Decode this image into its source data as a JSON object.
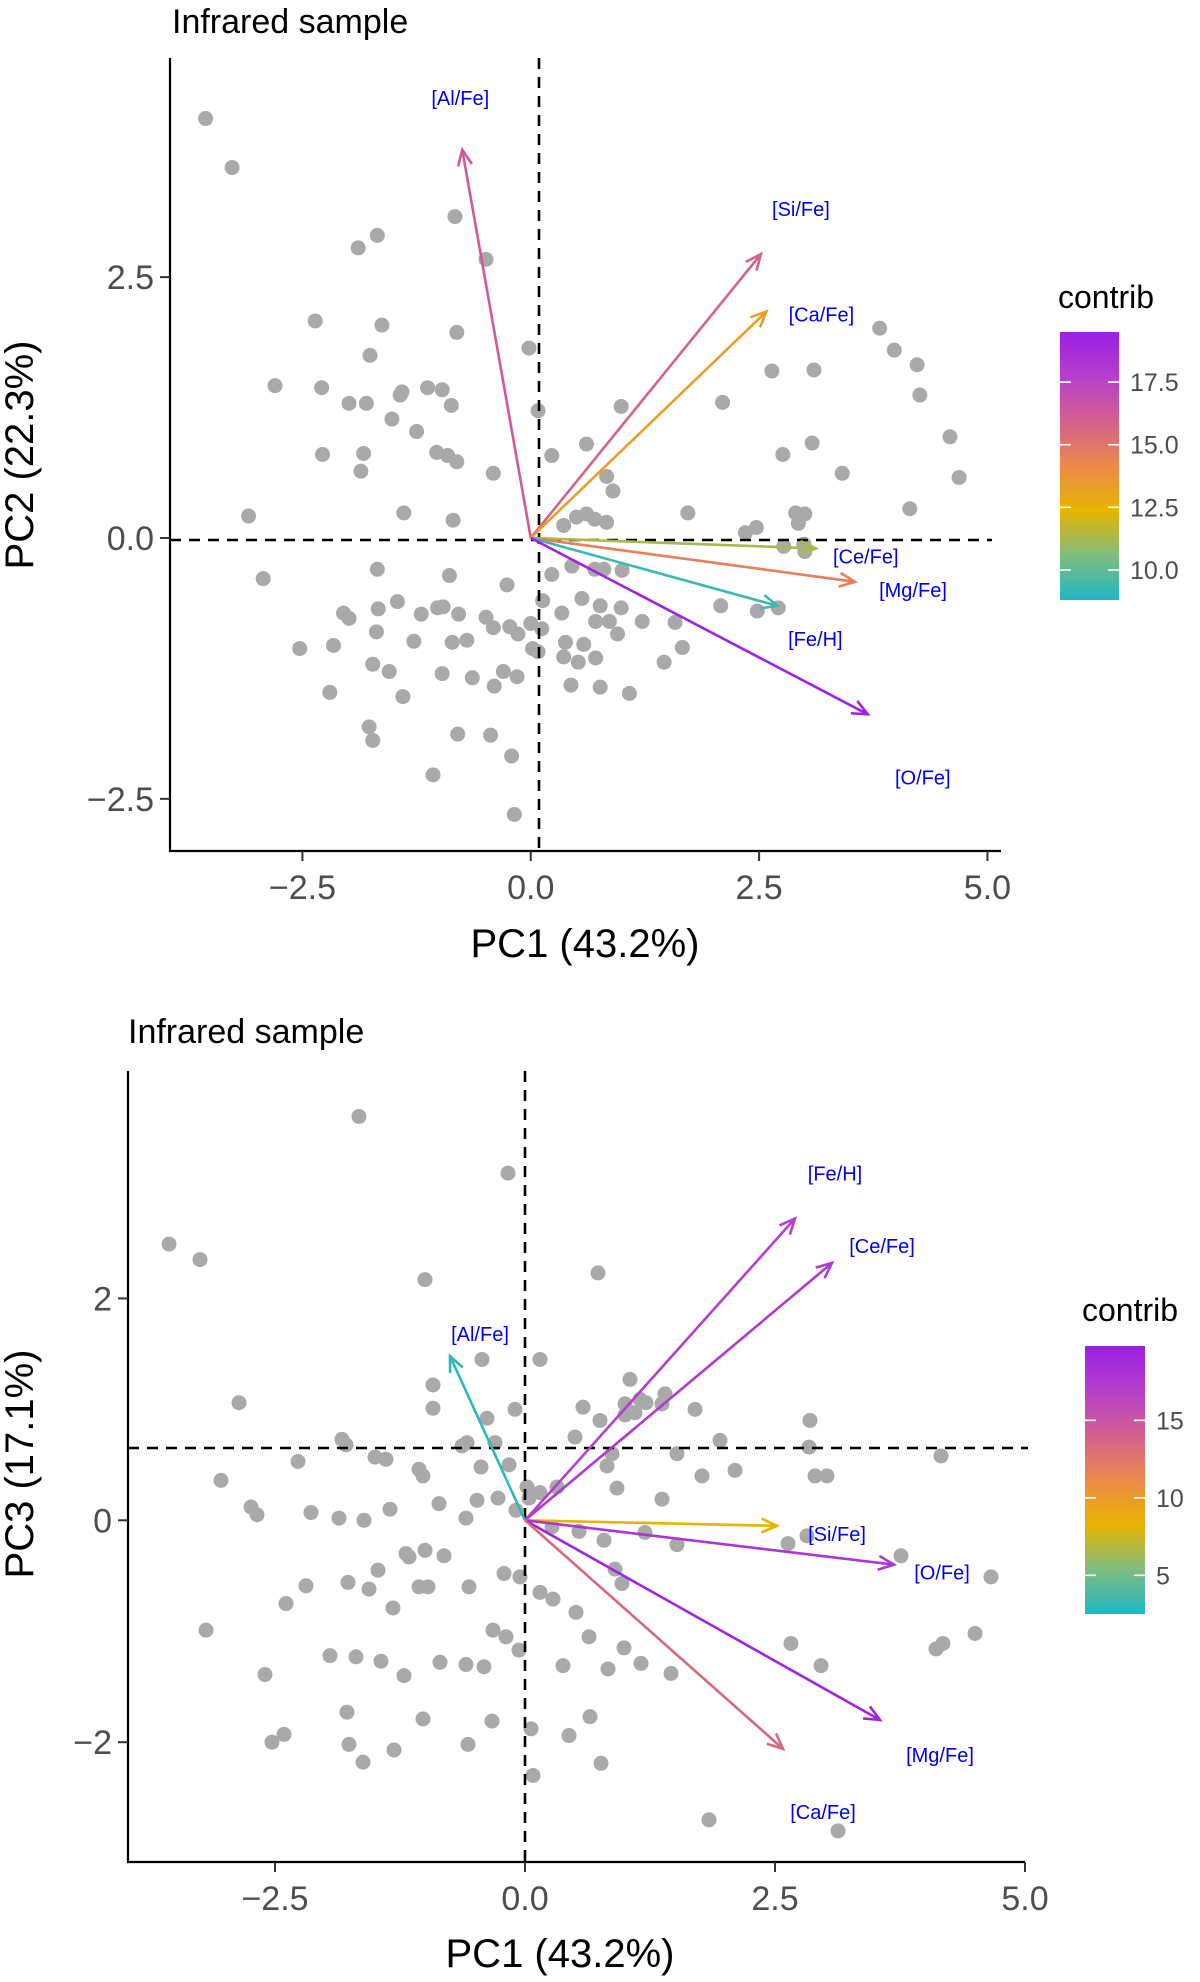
{
  "chart_data": [
    {
      "type": "scatter",
      "title": "Infrared sample",
      "xlabel": "PC1 (43.2%)",
      "ylabel": "PC2 (22.3%)",
      "xlim": [
        -3.95,
        5.05
      ],
      "ylim": [
        -3.0,
        4.6
      ],
      "xticks": [
        -2.5,
        0.0,
        2.5,
        5.0
      ],
      "xtick_labels": [
        "−2.5",
        "0.0",
        "2.5",
        "5.0"
      ],
      "yticks": [
        -2.5,
        0.0,
        2.5
      ],
      "ytick_labels": [
        "−2.5",
        "0.0",
        "2.5"
      ],
      "legend": {
        "title": "contrib",
        "range": [
          8.8,
          19.5
        ],
        "ticks": [
          10.0,
          12.5,
          15.0,
          17.5
        ],
        "tick_labels": [
          "10.0",
          "12.5",
          "15.0",
          "17.5"
        ],
        "colors": [
          "#1fb8c4",
          "#7fbc7f",
          "#e8b400",
          "#ec8a4a",
          "#d45f8e",
          "#b540c9",
          "#9b1ee6"
        ]
      },
      "arrows": [
        {
          "label": "[Al/Fe]",
          "x": -0.75,
          "y": 3.72,
          "contrib": 16.2
        },
        {
          "label": "[Si/Fe]",
          "x": 2.52,
          "y": 2.72,
          "contrib": 15.8
        },
        {
          "label": "[Ca/Fe]",
          "x": 2.58,
          "y": 2.17,
          "contrib": 13.3
        },
        {
          "label": "[Ce/Fe]",
          "x": 3.12,
          "y": -0.1,
          "contrib": 11.3
        },
        {
          "label": "[Mg/Fe]",
          "x": 3.55,
          "y": -0.42,
          "contrib": 14.6
        },
        {
          "label": "[Fe/H]",
          "x": 2.7,
          "y": -0.65,
          "contrib": 9.3
        },
        {
          "label": "[O/Fe]",
          "x": 3.69,
          "y": -1.69,
          "contrib": 19.3
        }
      ],
      "points": [
        [
          -3.56,
          4.02
        ],
        [
          -3.27,
          3.55
        ],
        [
          -1.68,
          2.9
        ],
        [
          -1.89,
          2.78
        ],
        [
          -0.83,
          3.08
        ],
        [
          -0.49,
          2.67
        ],
        [
          -2.36,
          2.08
        ],
        [
          -1.63,
          2.04
        ],
        [
          -0.81,
          1.97
        ],
        [
          -0.02,
          1.82
        ],
        [
          -1.76,
          1.75
        ],
        [
          -2.8,
          1.46
        ],
        [
          -2.29,
          1.44
        ],
        [
          -1.43,
          1.37
        ],
        [
          -1.41,
          1.4
        ],
        [
          -1.13,
          1.44
        ],
        [
          -0.97,
          1.42
        ],
        [
          -1.8,
          1.29
        ],
        [
          -1.99,
          1.29
        ],
        [
          -0.87,
          1.27
        ],
        [
          0.08,
          1.22
        ],
        [
          -1.52,
          1.14
        ],
        [
          -1.25,
          1.02
        ],
        [
          -2.28,
          0.8
        ],
        [
          -1.83,
          0.81
        ],
        [
          -1.03,
          0.82
        ],
        [
          -0.91,
          0.79
        ],
        [
          -1.86,
          0.64
        ],
        [
          -0.81,
          0.73
        ],
        [
          -0.41,
          0.62
        ],
        [
          0.99,
          1.26
        ],
        [
          0.61,
          0.9
        ],
        [
          0.23,
          0.79
        ],
        [
          -3.09,
          0.21
        ],
        [
          -1.39,
          0.24
        ],
        [
          -0.85,
          0.17
        ],
        [
          0.36,
          0.12
        ],
        [
          0.61,
          0.23
        ],
        [
          0.83,
          0.59
        ],
        [
          0.9,
          0.45
        ],
        [
          0.7,
          0.18
        ],
        [
          0.5,
          0.2
        ],
        [
          0.83,
          0.15
        ],
        [
          -2.93,
          -0.39
        ],
        [
          -1.68,
          -0.3
        ],
        [
          -0.89,
          -0.36
        ],
        [
          -0.26,
          -0.45
        ],
        [
          0.23,
          -0.35
        ],
        [
          0.45,
          -0.27
        ],
        [
          0.7,
          -0.3
        ],
        [
          0.8,
          -0.3
        ],
        [
          1.0,
          -0.31
        ],
        [
          -2.05,
          -0.72
        ],
        [
          -1.99,
          -0.77
        ],
        [
          -1.67,
          -0.68
        ],
        [
          -1.46,
          -0.61
        ],
        [
          -1.2,
          -0.73
        ],
        [
          -1.02,
          -0.67
        ],
        [
          -0.96,
          -0.66
        ],
        [
          -0.79,
          -0.73
        ],
        [
          -0.49,
          -0.76
        ],
        [
          -0.23,
          -0.85
        ],
        [
          0.0,
          -0.82
        ],
        [
          0.13,
          -0.6
        ],
        [
          0.34,
          -0.72
        ],
        [
          0.56,
          -0.58
        ],
        [
          0.76,
          -0.65
        ],
        [
          0.99,
          -0.67
        ],
        [
          -2.53,
          -1.06
        ],
        [
          -2.16,
          -1.03
        ],
        [
          -1.69,
          -0.9
        ],
        [
          -1.28,
          -0.99
        ],
        [
          -0.86,
          -1.0
        ],
        [
          -0.7,
          -0.98
        ],
        [
          -0.41,
          -0.86
        ],
        [
          -0.14,
          -0.92
        ],
        [
          0.12,
          -0.87
        ],
        [
          0.38,
          -1.0
        ],
        [
          0.58,
          -1.02
        ],
        [
          0.71,
          -0.8
        ],
        [
          0.86,
          -0.8
        ],
        [
          0.95,
          -0.92
        ],
        [
          1.22,
          -0.8
        ],
        [
          -1.73,
          -1.21
        ],
        [
          -1.55,
          -1.28
        ],
        [
          -0.97,
          -1.3
        ],
        [
          -0.3,
          -1.28
        ],
        [
          -0.15,
          -1.33
        ],
        [
          0.02,
          -1.06
        ],
        [
          0.08,
          -1.09
        ],
        [
          0.36,
          -1.14
        ],
        [
          0.52,
          -1.19
        ],
        [
          0.71,
          -1.15
        ],
        [
          1.46,
          -1.19
        ],
        [
          -2.2,
          -1.48
        ],
        [
          -1.4,
          -1.52
        ],
        [
          -0.64,
          -1.34
        ],
        [
          -0.4,
          -1.42
        ],
        [
          0.44,
          -1.41
        ],
        [
          0.76,
          -1.43
        ],
        [
          1.08,
          -1.49
        ],
        [
          -1.77,
          -1.81
        ],
        [
          -1.73,
          -1.94
        ],
        [
          -0.8,
          -1.88
        ],
        [
          -0.44,
          -1.89
        ],
        [
          -0.21,
          -2.09
        ],
        [
          -1.07,
          -2.27
        ],
        [
          -0.18,
          -2.65
        ],
        [
          1.58,
          -0.81
        ],
        [
          1.66,
          -1.05
        ],
        [
          2.08,
          -0.65
        ],
        [
          2.48,
          -0.7
        ],
        [
          2.71,
          -0.67
        ],
        [
          1.72,
          0.24
        ],
        [
          2.35,
          0.05
        ],
        [
          2.47,
          0.1
        ],
        [
          2.77,
          -0.08
        ],
        [
          2.9,
          0.24
        ],
        [
          2.93,
          0.14
        ],
        [
          3.0,
          0.23
        ],
        [
          2.99,
          -0.06
        ],
        [
          3.0,
          -0.13
        ],
        [
          2.1,
          1.3
        ],
        [
          2.64,
          1.6
        ],
        [
          3.1,
          1.61
        ],
        [
          3.08,
          0.91
        ],
        [
          2.76,
          0.8
        ],
        [
          3.41,
          0.62
        ],
        [
          3.82,
          2.01
        ],
        [
          3.98,
          1.8
        ],
        [
          4.23,
          1.66
        ],
        [
          4.26,
          1.37
        ],
        [
          4.59,
          0.97
        ],
        [
          4.69,
          0.58
        ],
        [
          4.15,
          0.28
        ]
      ]
    },
    {
      "type": "scatter",
      "title": "Infrared sample",
      "xlabel": "PC1 (43.2%)",
      "ylabel": "PC3 (17.1%)",
      "xlim": [
        -3.97,
        5.0
      ],
      "ylim": [
        -3.08,
        4.05
      ],
      "xticks": [
        -2.5,
        0.0,
        2.5,
        5.0
      ],
      "xtick_labels": [
        "−2.5",
        "0.0",
        "2.5",
        "5.0"
      ],
      "yticks": [
        -2,
        0,
        2
      ],
      "ytick_labels": [
        "−2",
        "0",
        "2"
      ],
      "legend": {
        "title": "contrib",
        "range": [
          2.5,
          19.8
        ],
        "ticks": [
          5,
          10,
          15
        ],
        "tick_labels": [
          "5",
          "10",
          "15"
        ],
        "colors": [
          "#1fb8c4",
          "#7fbc7f",
          "#e8b400",
          "#ec8a4a",
          "#d45f8e",
          "#b540c9",
          "#9b1ee6"
        ]
      },
      "arrows": [
        {
          "label": "[Fe/H]",
          "x": 2.7,
          "y": 2.72,
          "contrib": 17.0
        },
        {
          "label": "[Ce/Fe]",
          "x": 3.07,
          "y": 2.32,
          "contrib": 17.5
        },
        {
          "label": "[Al/Fe]",
          "x": -0.75,
          "y": 1.48,
          "contrib": 2.9
        },
        {
          "label": "[Si/Fe]",
          "x": 2.52,
          "y": -0.05,
          "contrib": 8.5
        },
        {
          "label": "[O/Fe]",
          "x": 3.69,
          "y": -0.4,
          "contrib": 17.8
        },
        {
          "label": "[Mg/Fe]",
          "x": 3.55,
          "y": -1.8,
          "contrib": 19.4
        },
        {
          "label": "[Ca/Fe]",
          "x": 2.58,
          "y": -2.06,
          "contrib": 13.5
        }
      ],
      "points": [
        [
          -1.66,
          3.64
        ],
        [
          -0.17,
          3.13
        ],
        [
          -3.56,
          2.49
        ],
        [
          -3.25,
          2.35
        ],
        [
          -1.0,
          2.17
        ],
        [
          0.73,
          2.23
        ],
        [
          -0.43,
          1.45
        ],
        [
          0.15,
          1.45
        ],
        [
          -0.1,
          1.0
        ],
        [
          -0.92,
          1.22
        ],
        [
          -0.92,
          1.01
        ],
        [
          -2.86,
          1.06
        ],
        [
          0.58,
          1.02
        ],
        [
          1.0,
          1.05
        ],
        [
          1.05,
          1.27
        ],
        [
          1.37,
          1.05
        ],
        [
          1.7,
          1.0
        ],
        [
          0.75,
          0.9
        ],
        [
          0.5,
          0.75
        ],
        [
          1.15,
          1.09
        ],
        [
          1.0,
          0.95
        ],
        [
          1.1,
          0.97
        ],
        [
          2.85,
          0.9
        ],
        [
          2.84,
          0.66
        ],
        [
          1.95,
          0.72
        ],
        [
          2.9,
          0.4
        ],
        [
          3.02,
          0.4
        ],
        [
          -0.3,
          0.7
        ],
        [
          -0.58,
          0.7
        ],
        [
          0.87,
          0.6
        ],
        [
          2.1,
          0.45
        ],
        [
          1.52,
          0.6
        ],
        [
          -2.27,
          0.53
        ],
        [
          -1.83,
          0.73
        ],
        [
          -1.79,
          0.68
        ],
        [
          -1.5,
          0.57
        ],
        [
          -1.39,
          0.55
        ],
        [
          -1.06,
          0.46
        ],
        [
          -1.02,
          0.4
        ],
        [
          -0.86,
          0.15
        ],
        [
          -0.44,
          0.48
        ],
        [
          -0.16,
          0.5
        ],
        [
          0.02,
          0.3
        ],
        [
          0.15,
          0.25
        ],
        [
          0.32,
          0.3
        ],
        [
          0.82,
          0.49
        ],
        [
          0.92,
          0.29
        ],
        [
          1.37,
          0.19
        ],
        [
          1.77,
          0.4
        ],
        [
          -3.04,
          0.36
        ],
        [
          -2.68,
          0.05
        ],
        [
          -1.86,
          0.02
        ],
        [
          -1.61,
          0.0
        ],
        [
          -1.35,
          0.1
        ],
        [
          -0.59,
          0.02
        ],
        [
          -0.48,
          0.18
        ],
        [
          -0.27,
          0.2
        ],
        [
          -0.09,
          0.09
        ],
        [
          0.04,
          0.2
        ],
        [
          -1.19,
          -0.3
        ],
        [
          -1.0,
          -0.27
        ],
        [
          -0.81,
          -0.32
        ],
        [
          0.27,
          -0.06
        ],
        [
          0.54,
          -0.1
        ],
        [
          0.79,
          -0.18
        ],
        [
          1.2,
          -0.11
        ],
        [
          1.52,
          -0.22
        ],
        [
          2.63,
          -0.21
        ],
        [
          2.82,
          -0.14
        ],
        [
          3.76,
          -0.32
        ],
        [
          4.16,
          0.58
        ],
        [
          4.66,
          -0.51
        ],
        [
          -2.39,
          -0.75
        ],
        [
          -2.19,
          -0.59
        ],
        [
          -1.77,
          -0.56
        ],
        [
          -1.56,
          -0.62
        ],
        [
          -1.32,
          -0.79
        ],
        [
          -1.06,
          -0.6
        ],
        [
          -0.97,
          -0.6
        ],
        [
          -0.56,
          -0.6
        ],
        [
          -0.21,
          -0.48
        ],
        [
          -0.05,
          -0.51
        ],
        [
          0.15,
          -0.65
        ],
        [
          0.28,
          -0.71
        ],
        [
          0.51,
          -0.83
        ],
        [
          0.9,
          -0.44
        ],
        [
          0.97,
          -0.57
        ],
        [
          4.11,
          -1.16
        ],
        [
          4.18,
          -1.11
        ],
        [
          4.5,
          -1.02
        ],
        [
          -2.6,
          -1.39
        ],
        [
          -1.95,
          -1.22
        ],
        [
          -1.69,
          -1.23
        ],
        [
          -1.44,
          -1.27
        ],
        [
          -1.21,
          -1.4
        ],
        [
          -0.85,
          -1.28
        ],
        [
          -0.59,
          -1.3
        ],
        [
          -0.41,
          -1.32
        ],
        [
          -0.06,
          -1.17
        ],
        [
          0.38,
          -1.31
        ],
        [
          0.64,
          -1.05
        ],
        [
          0.83,
          -1.34
        ],
        [
          0.99,
          -1.15
        ],
        [
          1.16,
          -1.29
        ],
        [
          1.46,
          -1.38
        ],
        [
          2.66,
          -1.11
        ],
        [
          2.96,
          -1.31
        ],
        [
          -2.41,
          -1.93
        ],
        [
          -1.76,
          -2.02
        ],
        [
          -1.02,
          -1.79
        ],
        [
          -0.33,
          -1.81
        ],
        [
          0.06,
          -1.88
        ],
        [
          0.44,
          -1.94
        ],
        [
          -1.31,
          -2.07
        ],
        [
          -2.53,
          -2.0
        ],
        [
          -1.78,
          -1.73
        ],
        [
          -3.19,
          -0.99
        ],
        [
          -1.47,
          -0.45
        ],
        [
          -1.16,
          -0.33
        ],
        [
          -0.32,
          -0.99
        ],
        [
          -0.19,
          -1.05
        ],
        [
          0.65,
          -1.77
        ],
        [
          -0.57,
          -2.02
        ],
        [
          -1.62,
          -2.18
        ],
        [
          0.08,
          -2.3
        ],
        [
          0.76,
          -2.19
        ],
        [
          1.84,
          -2.7
        ],
        [
          3.13,
          -2.8
        ],
        [
          -2.74,
          0.12
        ],
        [
          -2.14,
          0.07
        ],
        [
          -0.38,
          0.92
        ],
        [
          -0.63,
          0.67
        ],
        [
          1.21,
          1.06
        ],
        [
          1.4,
          1.14
        ]
      ]
    }
  ]
}
